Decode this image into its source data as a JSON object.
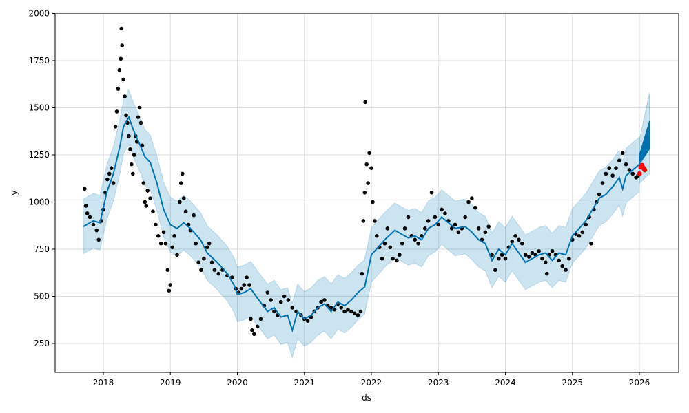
{
  "chart_data": {
    "type": "line",
    "title": "",
    "xlabel": "ds",
    "ylabel": "y",
    "xlim": [
      2017.28,
      2026.59
    ],
    "ylim": [
      97,
      2000
    ],
    "grid": true,
    "x_ticks": [
      "2018",
      "2019",
      "2020",
      "2021",
      "2022",
      "2023",
      "2024",
      "2025",
      "2026"
    ],
    "y_ticks": [
      "250",
      "500",
      "750",
      "1000",
      "1250",
      "1500",
      "1750",
      "2000"
    ],
    "colors": {
      "yhat": "#0072B2",
      "band": "#0072B2",
      "observed": "#000000",
      "actual_test": "#ff0000"
    },
    "yhat": [
      [
        2017.7,
        870
      ],
      [
        2017.85,
        900
      ],
      [
        2017.95,
        890
      ],
      [
        2018.05,
        1050
      ],
      [
        2018.15,
        1150
      ],
      [
        2018.25,
        1300
      ],
      [
        2018.3,
        1400
      ],
      [
        2018.38,
        1450
      ],
      [
        2018.45,
        1380
      ],
      [
        2018.55,
        1300
      ],
      [
        2018.62,
        1240
      ],
      [
        2018.7,
        1210
      ],
      [
        2018.8,
        1100
      ],
      [
        2018.9,
        960
      ],
      [
        2019.0,
        880
      ],
      [
        2019.1,
        860
      ],
      [
        2019.2,
        890
      ],
      [
        2019.3,
        860
      ],
      [
        2019.45,
        800
      ],
      [
        2019.55,
        730
      ],
      [
        2019.7,
        680
      ],
      [
        2019.85,
        620
      ],
      [
        2019.95,
        560
      ],
      [
        2020.0,
        510
      ],
      [
        2020.1,
        520
      ],
      [
        2020.2,
        540
      ],
      [
        2020.3,
        490
      ],
      [
        2020.45,
        420
      ],
      [
        2020.55,
        440
      ],
      [
        2020.65,
        390
      ],
      [
        2020.75,
        400
      ],
      [
        2020.82,
        320
      ],
      [
        2020.9,
        420
      ],
      [
        2021.0,
        380
      ],
      [
        2021.1,
        400
      ],
      [
        2021.2,
        440
      ],
      [
        2021.3,
        460
      ],
      [
        2021.4,
        420
      ],
      [
        2021.5,
        470
      ],
      [
        2021.6,
        450
      ],
      [
        2021.7,
        480
      ],
      [
        2021.8,
        520
      ],
      [
        2021.9,
        550
      ],
      [
        2022.0,
        720
      ],
      [
        2022.1,
        760
      ],
      [
        2022.2,
        800
      ],
      [
        2022.35,
        850
      ],
      [
        2022.45,
        830
      ],
      [
        2022.55,
        810
      ],
      [
        2022.65,
        820
      ],
      [
        2022.75,
        800
      ],
      [
        2022.85,
        860
      ],
      [
        2022.95,
        880
      ],
      [
        2023.05,
        920
      ],
      [
        2023.15,
        890
      ],
      [
        2023.25,
        860
      ],
      [
        2023.4,
        870
      ],
      [
        2023.5,
        840
      ],
      [
        2023.6,
        800
      ],
      [
        2023.7,
        780
      ],
      [
        2023.8,
        690
      ],
      [
        2023.9,
        750
      ],
      [
        2024.0,
        720
      ],
      [
        2024.1,
        780
      ],
      [
        2024.2,
        730
      ],
      [
        2024.3,
        680
      ],
      [
        2024.4,
        700
      ],
      [
        2024.5,
        720
      ],
      [
        2024.6,
        730
      ],
      [
        2024.7,
        690
      ],
      [
        2024.8,
        730
      ],
      [
        2024.9,
        720
      ],
      [
        2025.0,
        820
      ],
      [
        2025.1,
        860
      ],
      [
        2025.2,
        900
      ],
      [
        2025.3,
        960
      ],
      [
        2025.4,
        1020
      ],
      [
        2025.5,
        1040
      ],
      [
        2025.6,
        1080
      ],
      [
        2025.7,
        1130
      ],
      [
        2025.75,
        1070
      ],
      [
        2025.8,
        1140
      ],
      [
        2025.9,
        1170
      ],
      [
        2026.0,
        1200
      ]
    ],
    "band_halfwidth": 145,
    "forecast": {
      "x": [
        2026.0,
        2026.15
      ],
      "lower": [
        1200,
        1280
      ],
      "upper": [
        1250,
        1430
      ],
      "band_lower": [
        1100,
        1150
      ],
      "band_upper": [
        1330,
        1580
      ]
    },
    "observed": [
      [
        2017.72,
        1070
      ],
      [
        2017.74,
        980
      ],
      [
        2017.76,
        940
      ],
      [
        2017.8,
        920
      ],
      [
        2017.85,
        880
      ],
      [
        2017.9,
        850
      ],
      [
        2017.93,
        800
      ],
      [
        2017.97,
        900
      ],
      [
        2018.0,
        960
      ],
      [
        2018.03,
        1050
      ],
      [
        2018.06,
        1120
      ],
      [
        2018.09,
        1150
      ],
      [
        2018.12,
        1180
      ],
      [
        2018.15,
        1100
      ],
      [
        2018.18,
        1400
      ],
      [
        2018.2,
        1480
      ],
      [
        2018.22,
        1600
      ],
      [
        2018.24,
        1700
      ],
      [
        2018.26,
        1760
      ],
      [
        2018.27,
        1920
      ],
      [
        2018.28,
        1830
      ],
      [
        2018.3,
        1650
      ],
      [
        2018.32,
        1560
      ],
      [
        2018.34,
        1460
      ],
      [
        2018.36,
        1420
      ],
      [
        2018.38,
        1350
      ],
      [
        2018.4,
        1280
      ],
      [
        2018.42,
        1200
      ],
      [
        2018.44,
        1150
      ],
      [
        2018.46,
        1250
      ],
      [
        2018.48,
        1350
      ],
      [
        2018.5,
        1320
      ],
      [
        2018.52,
        1450
      ],
      [
        2018.54,
        1500
      ],
      [
        2018.56,
        1420
      ],
      [
        2018.58,
        1300
      ],
      [
        2018.6,
        1100
      ],
      [
        2018.62,
        1000
      ],
      [
        2018.64,
        980
      ],
      [
        2018.66,
        1060
      ],
      [
        2018.7,
        1020
      ],
      [
        2018.74,
        950
      ],
      [
        2018.78,
        880
      ],
      [
        2018.82,
        820
      ],
      [
        2018.86,
        780
      ],
      [
        2018.9,
        840
      ],
      [
        2018.93,
        780
      ],
      [
        2018.96,
        640
      ],
      [
        2018.98,
        530
      ],
      [
        2019.0,
        560
      ],
      [
        2019.03,
        760
      ],
      [
        2019.06,
        820
      ],
      [
        2019.1,
        720
      ],
      [
        2019.14,
        1000
      ],
      [
        2019.16,
        1100
      ],
      [
        2019.18,
        1150
      ],
      [
        2019.2,
        1020
      ],
      [
        2019.23,
        950
      ],
      [
        2019.27,
        880
      ],
      [
        2019.3,
        850
      ],
      [
        2019.35,
        930
      ],
      [
        2019.38,
        780
      ],
      [
        2019.42,
        680
      ],
      [
        2019.46,
        640
      ],
      [
        2019.5,
        700
      ],
      [
        2019.55,
        760
      ],
      [
        2019.58,
        780
      ],
      [
        2019.62,
        680
      ],
      [
        2019.66,
        640
      ],
      [
        2019.72,
        620
      ],
      [
        2019.78,
        640
      ],
      [
        2019.85,
        610
      ],
      [
        2019.92,
        600
      ],
      [
        2019.98,
        540
      ],
      [
        2020.02,
        520
      ],
      [
        2020.06,
        540
      ],
      [
        2020.1,
        560
      ],
      [
        2020.14,
        600
      ],
      [
        2020.18,
        560
      ],
      [
        2020.2,
        380
      ],
      [
        2020.22,
        320
      ],
      [
        2020.25,
        300
      ],
      [
        2020.3,
        340
      ],
      [
        2020.35,
        380
      ],
      [
        2020.4,
        450
      ],
      [
        2020.45,
        520
      ],
      [
        2020.5,
        480
      ],
      [
        2020.55,
        420
      ],
      [
        2020.6,
        400
      ],
      [
        2020.65,
        470
      ],
      [
        2020.7,
        500
      ],
      [
        2020.76,
        480
      ],
      [
        2020.82,
        440
      ],
      [
        2020.88,
        420
      ],
      [
        2020.95,
        400
      ],
      [
        2021.0,
        380
      ],
      [
        2021.05,
        370
      ],
      [
        2021.1,
        390
      ],
      [
        2021.15,
        420
      ],
      [
        2021.2,
        440
      ],
      [
        2021.25,
        470
      ],
      [
        2021.3,
        480
      ],
      [
        2021.35,
        450
      ],
      [
        2021.4,
        440
      ],
      [
        2021.45,
        430
      ],
      [
        2021.5,
        460
      ],
      [
        2021.55,
        440
      ],
      [
        2021.6,
        420
      ],
      [
        2021.65,
        430
      ],
      [
        2021.7,
        420
      ],
      [
        2021.75,
        410
      ],
      [
        2021.8,
        400
      ],
      [
        2021.84,
        420
      ],
      [
        2021.86,
        620
      ],
      [
        2021.88,
        900
      ],
      [
        2021.9,
        1050
      ],
      [
        2021.91,
        1530
      ],
      [
        2021.93,
        1200
      ],
      [
        2021.95,
        1100
      ],
      [
        2021.97,
        1260
      ],
      [
        2022.0,
        1180
      ],
      [
        2022.02,
        1000
      ],
      [
        2022.05,
        900
      ],
      [
        2022.08,
        820
      ],
      [
        2022.12,
        760
      ],
      [
        2022.16,
        700
      ],
      [
        2022.2,
        780
      ],
      [
        2022.24,
        860
      ],
      [
        2022.28,
        760
      ],
      [
        2022.32,
        700
      ],
      [
        2022.38,
        690
      ],
      [
        2022.42,
        720
      ],
      [
        2022.46,
        780
      ],
      [
        2022.5,
        860
      ],
      [
        2022.55,
        920
      ],
      [
        2022.6,
        820
      ],
      [
        2022.65,
        800
      ],
      [
        2022.7,
        780
      ],
      [
        2022.75,
        820
      ],
      [
        2022.8,
        860
      ],
      [
        2022.85,
        900
      ],
      [
        2022.9,
        1050
      ],
      [
        2022.95,
        920
      ],
      [
        2023.0,
        880
      ],
      [
        2023.05,
        960
      ],
      [
        2023.1,
        940
      ],
      [
        2023.15,
        900
      ],
      [
        2023.2,
        860
      ],
      [
        2023.25,
        880
      ],
      [
        2023.3,
        840
      ],
      [
        2023.35,
        860
      ],
      [
        2023.4,
        920
      ],
      [
        2023.45,
        1000
      ],
      [
        2023.5,
        1020
      ],
      [
        2023.55,
        970
      ],
      [
        2023.6,
        860
      ],
      [
        2023.65,
        800
      ],
      [
        2023.7,
        840
      ],
      [
        2023.75,
        870
      ],
      [
        2023.8,
        720
      ],
      [
        2023.85,
        640
      ],
      [
        2023.9,
        700
      ],
      [
        2023.95,
        720
      ],
      [
        2024.0,
        700
      ],
      [
        2024.05,
        760
      ],
      [
        2024.1,
        790
      ],
      [
        2024.15,
        820
      ],
      [
        2024.2,
        800
      ],
      [
        2024.25,
        780
      ],
      [
        2024.3,
        720
      ],
      [
        2024.35,
        710
      ],
      [
        2024.4,
        730
      ],
      [
        2024.45,
        720
      ],
      [
        2024.5,
        740
      ],
      [
        2024.55,
        700
      ],
      [
        2024.6,
        680
      ],
      [
        2024.62,
        620
      ],
      [
        2024.65,
        720
      ],
      [
        2024.7,
        740
      ],
      [
        2024.75,
        720
      ],
      [
        2024.8,
        690
      ],
      [
        2024.85,
        660
      ],
      [
        2024.9,
        640
      ],
      [
        2024.95,
        700
      ],
      [
        2025.0,
        800
      ],
      [
        2025.05,
        830
      ],
      [
        2025.1,
        820
      ],
      [
        2025.15,
        840
      ],
      [
        2025.2,
        880
      ],
      [
        2025.25,
        920
      ],
      [
        2025.28,
        780
      ],
      [
        2025.32,
        960
      ],
      [
        2025.36,
        1000
      ],
      [
        2025.4,
        1040
      ],
      [
        2025.45,
        1100
      ],
      [
        2025.5,
        1150
      ],
      [
        2025.55,
        1180
      ],
      [
        2025.6,
        1140
      ],
      [
        2025.65,
        1180
      ],
      [
        2025.7,
        1220
      ],
      [
        2025.75,
        1260
      ],
      [
        2025.8,
        1200
      ],
      [
        2025.85,
        1170
      ],
      [
        2025.9,
        1150
      ],
      [
        2025.95,
        1130
      ],
      [
        2025.98,
        1140
      ]
    ],
    "actual_test": [
      [
        2026.0,
        1150
      ],
      [
        2026.02,
        1185
      ],
      [
        2026.04,
        1195
      ],
      [
        2026.06,
        1180
      ],
      [
        2026.08,
        1170
      ]
    ]
  }
}
